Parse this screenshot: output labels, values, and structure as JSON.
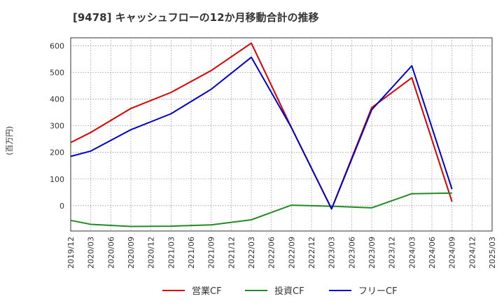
{
  "chart_data": {
    "type": "line",
    "title": "[9478]  キャッシュフローの12か月移動合計の推移",
    "ylabel": "(百万円)",
    "xlabel": "",
    "ylim": [
      -95,
      630
    ],
    "yticks": [
      0,
      100,
      200,
      300,
      400,
      500,
      600
    ],
    "categories": [
      "2019/12",
      "2020/03",
      "2020/06",
      "2020/09",
      "2020/12",
      "2021/03",
      "2021/06",
      "2021/09",
      "2021/12",
      "2022/03",
      "2022/06",
      "2022/09",
      "2022/12",
      "2023/03",
      "2023/06",
      "2023/09",
      "2023/12",
      "2024/03",
      "2024/06",
      "2024/09",
      "2024/12",
      "2025/03"
    ],
    "series": [
      {
        "name": "営業CF",
        "color": "#dd0000",
        "values": [
          237,
          275,
          null,
          365,
          null,
          425,
          null,
          507,
          null,
          610,
          null,
          293,
          null,
          -12,
          null,
          368,
          null,
          480,
          null,
          15,
          null,
          null
        ]
      },
      {
        "name": "投資CF",
        "color": "#228b22",
        "values": [
          -55,
          -70,
          null,
          -78,
          null,
          -77,
          null,
          -72,
          null,
          -53,
          null,
          2,
          null,
          -2,
          null,
          -8,
          null,
          45,
          null,
          47,
          null,
          null
        ]
      },
      {
        "name": "フリーCF",
        "color": "#0000cc",
        "values": [
          185,
          205,
          null,
          285,
          null,
          345,
          null,
          437,
          null,
          557,
          null,
          293,
          null,
          -12,
          null,
          360,
          null,
          525,
          null,
          62,
          null,
          null
        ]
      }
    ]
  }
}
